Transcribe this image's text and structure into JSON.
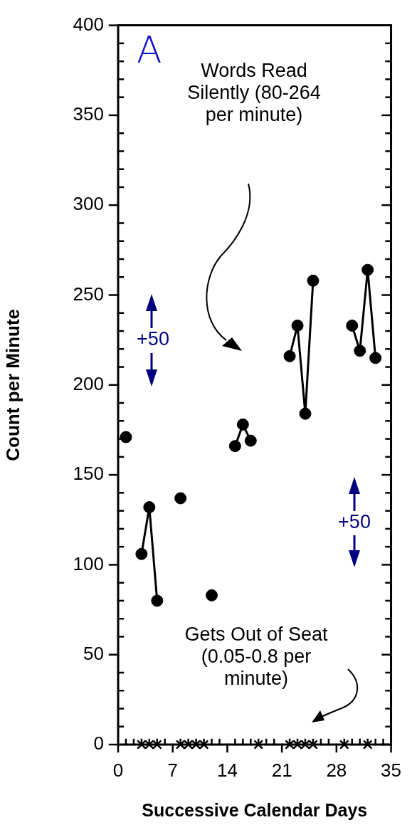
{
  "chart_data": {
    "type": "line",
    "xlabel": "Successive Calendar Days",
    "ylabel": "Count per Minute",
    "xlim": [
      0,
      35
    ],
    "ylim": [
      0,
      400
    ],
    "xticks": [
      0,
      {
        "value": 1,
        "label": null
      },
      {
        "value": 2,
        "label": null
      },
      {
        "value": 3,
        "label": null
      },
      {
        "value": 4,
        "label": null
      },
      {
        "value": 5,
        "label": null
      },
      {
        "value": 6,
        "label": null
      },
      7,
      {
        "value": 8,
        "label": null
      },
      {
        "value": 9,
        "label": null
      },
      {
        "value": 10,
        "label": null
      },
      {
        "value": 11,
        "label": null
      },
      {
        "value": 12,
        "label": null
      },
      {
        "value": 13,
        "label": null
      },
      14,
      {
        "value": 15,
        "label": null
      },
      {
        "value": 16,
        "label": null
      },
      {
        "value": 17,
        "label": null
      },
      {
        "value": 18,
        "label": null
      },
      {
        "value": 19,
        "label": null
      },
      {
        "value": 20,
        "label": null
      },
      21,
      {
        "value": 22,
        "label": null
      },
      {
        "value": 23,
        "label": null
      },
      {
        "value": 24,
        "label": null
      },
      {
        "value": 25,
        "label": null
      },
      {
        "value": 26,
        "label": null
      },
      {
        "value": 27,
        "label": null
      },
      28,
      {
        "value": 29,
        "label": null
      },
      {
        "value": 30,
        "label": null
      },
      {
        "value": 31,
        "label": null
      },
      {
        "value": 32,
        "label": null
      },
      {
        "value": 33,
        "label": null
      },
      {
        "value": 34,
        "label": null
      },
      35
    ],
    "yticks": [
      0,
      {
        "value": 10,
        "label": null
      },
      {
        "value": 20,
        "label": null
      },
      {
        "value": 30,
        "label": null
      },
      {
        "value": 40,
        "label": null
      },
      50,
      {
        "value": 60,
        "label": null
      },
      {
        "value": 70,
        "label": null
      },
      {
        "value": 80,
        "label": null
      },
      {
        "value": 90,
        "label": null
      },
      100,
      {
        "value": 110,
        "label": null
      },
      {
        "value": 120,
        "label": null
      },
      {
        "value": 130,
        "label": null
      },
      {
        "value": 140,
        "label": null
      },
      150,
      {
        "value": 160,
        "label": null
      },
      {
        "value": 170,
        "label": null
      },
      {
        "value": 180,
        "label": null
      },
      {
        "value": 190,
        "label": null
      },
      200,
      {
        "value": 210,
        "label": null
      },
      {
        "value": 220,
        "label": null
      },
      {
        "value": 230,
        "label": null
      },
      {
        "value": 240,
        "label": null
      },
      250,
      {
        "value": 260,
        "label": null
      },
      {
        "value": 270,
        "label": null
      },
      {
        "value": 280,
        "label": null
      },
      {
        "value": 290,
        "label": null
      },
      300,
      {
        "value": 310,
        "label": null
      },
      {
        "value": 320,
        "label": null
      },
      {
        "value": 330,
        "label": null
      },
      {
        "value": 340,
        "label": null
      },
      350,
      {
        "value": 360,
        "label": null
      },
      {
        "value": 370,
        "label": null
      },
      {
        "value": 380,
        "label": null
      },
      {
        "value": 390,
        "label": null
      },
      400
    ],
    "grid": false,
    "legend": false,
    "annotations": [
      "A",
      "Words Read Silently (80-264 per minute)",
      "+50",
      "+50",
      "Gets Out of Seat (0.05-0.8 per minute)"
    ],
    "series": [
      {
        "type": "line",
        "marker": "circle",
        "line_style": "solid",
        "color": "#000000",
        "x": [
          1,
          2,
          3,
          4,
          5,
          6,
          8,
          10,
          12,
          14,
          15,
          16,
          17,
          20,
          22,
          23,
          24,
          25,
          28,
          30,
          31,
          32,
          33
        ],
        "values": [
          171,
          null,
          106,
          132,
          80,
          null,
          137,
          null,
          83,
          null,
          166,
          178,
          169,
          null,
          216,
          233,
          184,
          258,
          null,
          233,
          219,
          264,
          215
        ]
      },
      {
        "type": "scatter",
        "marker": "cross",
        "color": "#000000",
        "x": [
          3,
          4,
          5,
          8,
          9,
          10,
          11,
          18,
          22,
          23,
          24,
          25,
          29,
          32
        ],
        "values": [
          0,
          0,
          0,
          0,
          0,
          0,
          0,
          0,
          0,
          0,
          0,
          0,
          0,
          0
        ]
      }
    ]
  }
}
